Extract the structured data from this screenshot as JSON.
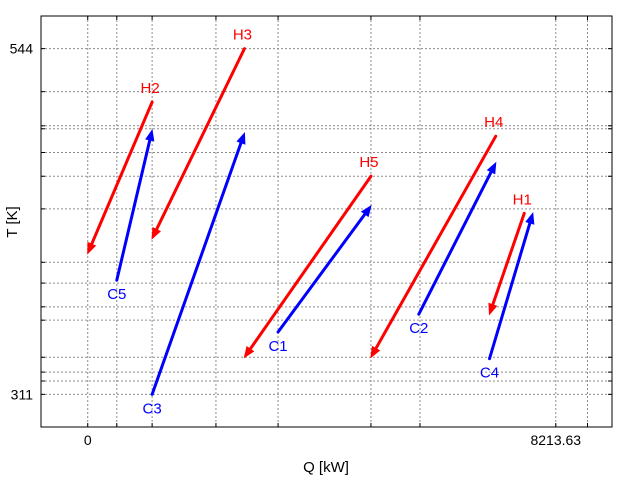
{
  "chart_data": {
    "type": "line",
    "xlabel": "Q [kW]",
    "ylabel": "T [K]",
    "x_tick_labels": [
      {
        "x": 0,
        "label": "0"
      },
      {
        "x": 8213.63,
        "label": "8213.63"
      }
    ],
    "y_tick_labels": [
      {
        "y": 544,
        "label": "544"
      },
      {
        "y": 311,
        "label": "311"
      }
    ],
    "xlim": [
      -820,
      9200
    ],
    "ylim": [
      289,
      566
    ],
    "x_gridlines": [
      0,
      510,
      1130,
      2250,
      3340,
      4970,
      5830,
      8213.63,
      8770
    ],
    "y_gridlines": [
      544,
      515,
      492,
      490,
      474,
      458,
      436,
      400,
      386,
      370,
      361,
      336,
      326,
      320,
      311
    ],
    "grid": true,
    "colors": {
      "hot": "#ff0000",
      "cold": "#0000ff"
    },
    "streams": [
      {
        "name": "H1",
        "kind": "hot",
        "x": [
          7660,
          7050
        ],
        "y": [
          433,
          365
        ]
      },
      {
        "name": "H2",
        "kind": "hot",
        "x": [
          1130,
          0
        ],
        "y": [
          508,
          406
        ]
      },
      {
        "name": "H3",
        "kind": "hot",
        "x": [
          2750,
          1130
        ],
        "y": [
          544,
          416
        ]
      },
      {
        "name": "H4",
        "kind": "hot",
        "x": [
          7160,
          4970
        ],
        "y": [
          485,
          336
        ]
      },
      {
        "name": "H5",
        "kind": "hot",
        "x": [
          4970,
          2750
        ],
        "y": [
          458,
          336
        ]
      },
      {
        "name": "C1",
        "kind": "cold",
        "x": [
          3340,
          4970
        ],
        "y": [
          353,
          438
        ]
      },
      {
        "name": "C2",
        "kind": "cold",
        "x": [
          5810,
          7160
        ],
        "y": [
          365,
          467
        ]
      },
      {
        "name": "C3",
        "kind": "cold",
        "x": [
          1130,
          2750
        ],
        "y": [
          311,
          487
        ]
      },
      {
        "name": "C4",
        "kind": "cold",
        "x": [
          7050,
          7810
        ],
        "y": [
          335,
          433
        ]
      },
      {
        "name": "C5",
        "kind": "cold",
        "x": [
          510,
          1130
        ],
        "y": [
          388,
          489
        ]
      }
    ]
  }
}
